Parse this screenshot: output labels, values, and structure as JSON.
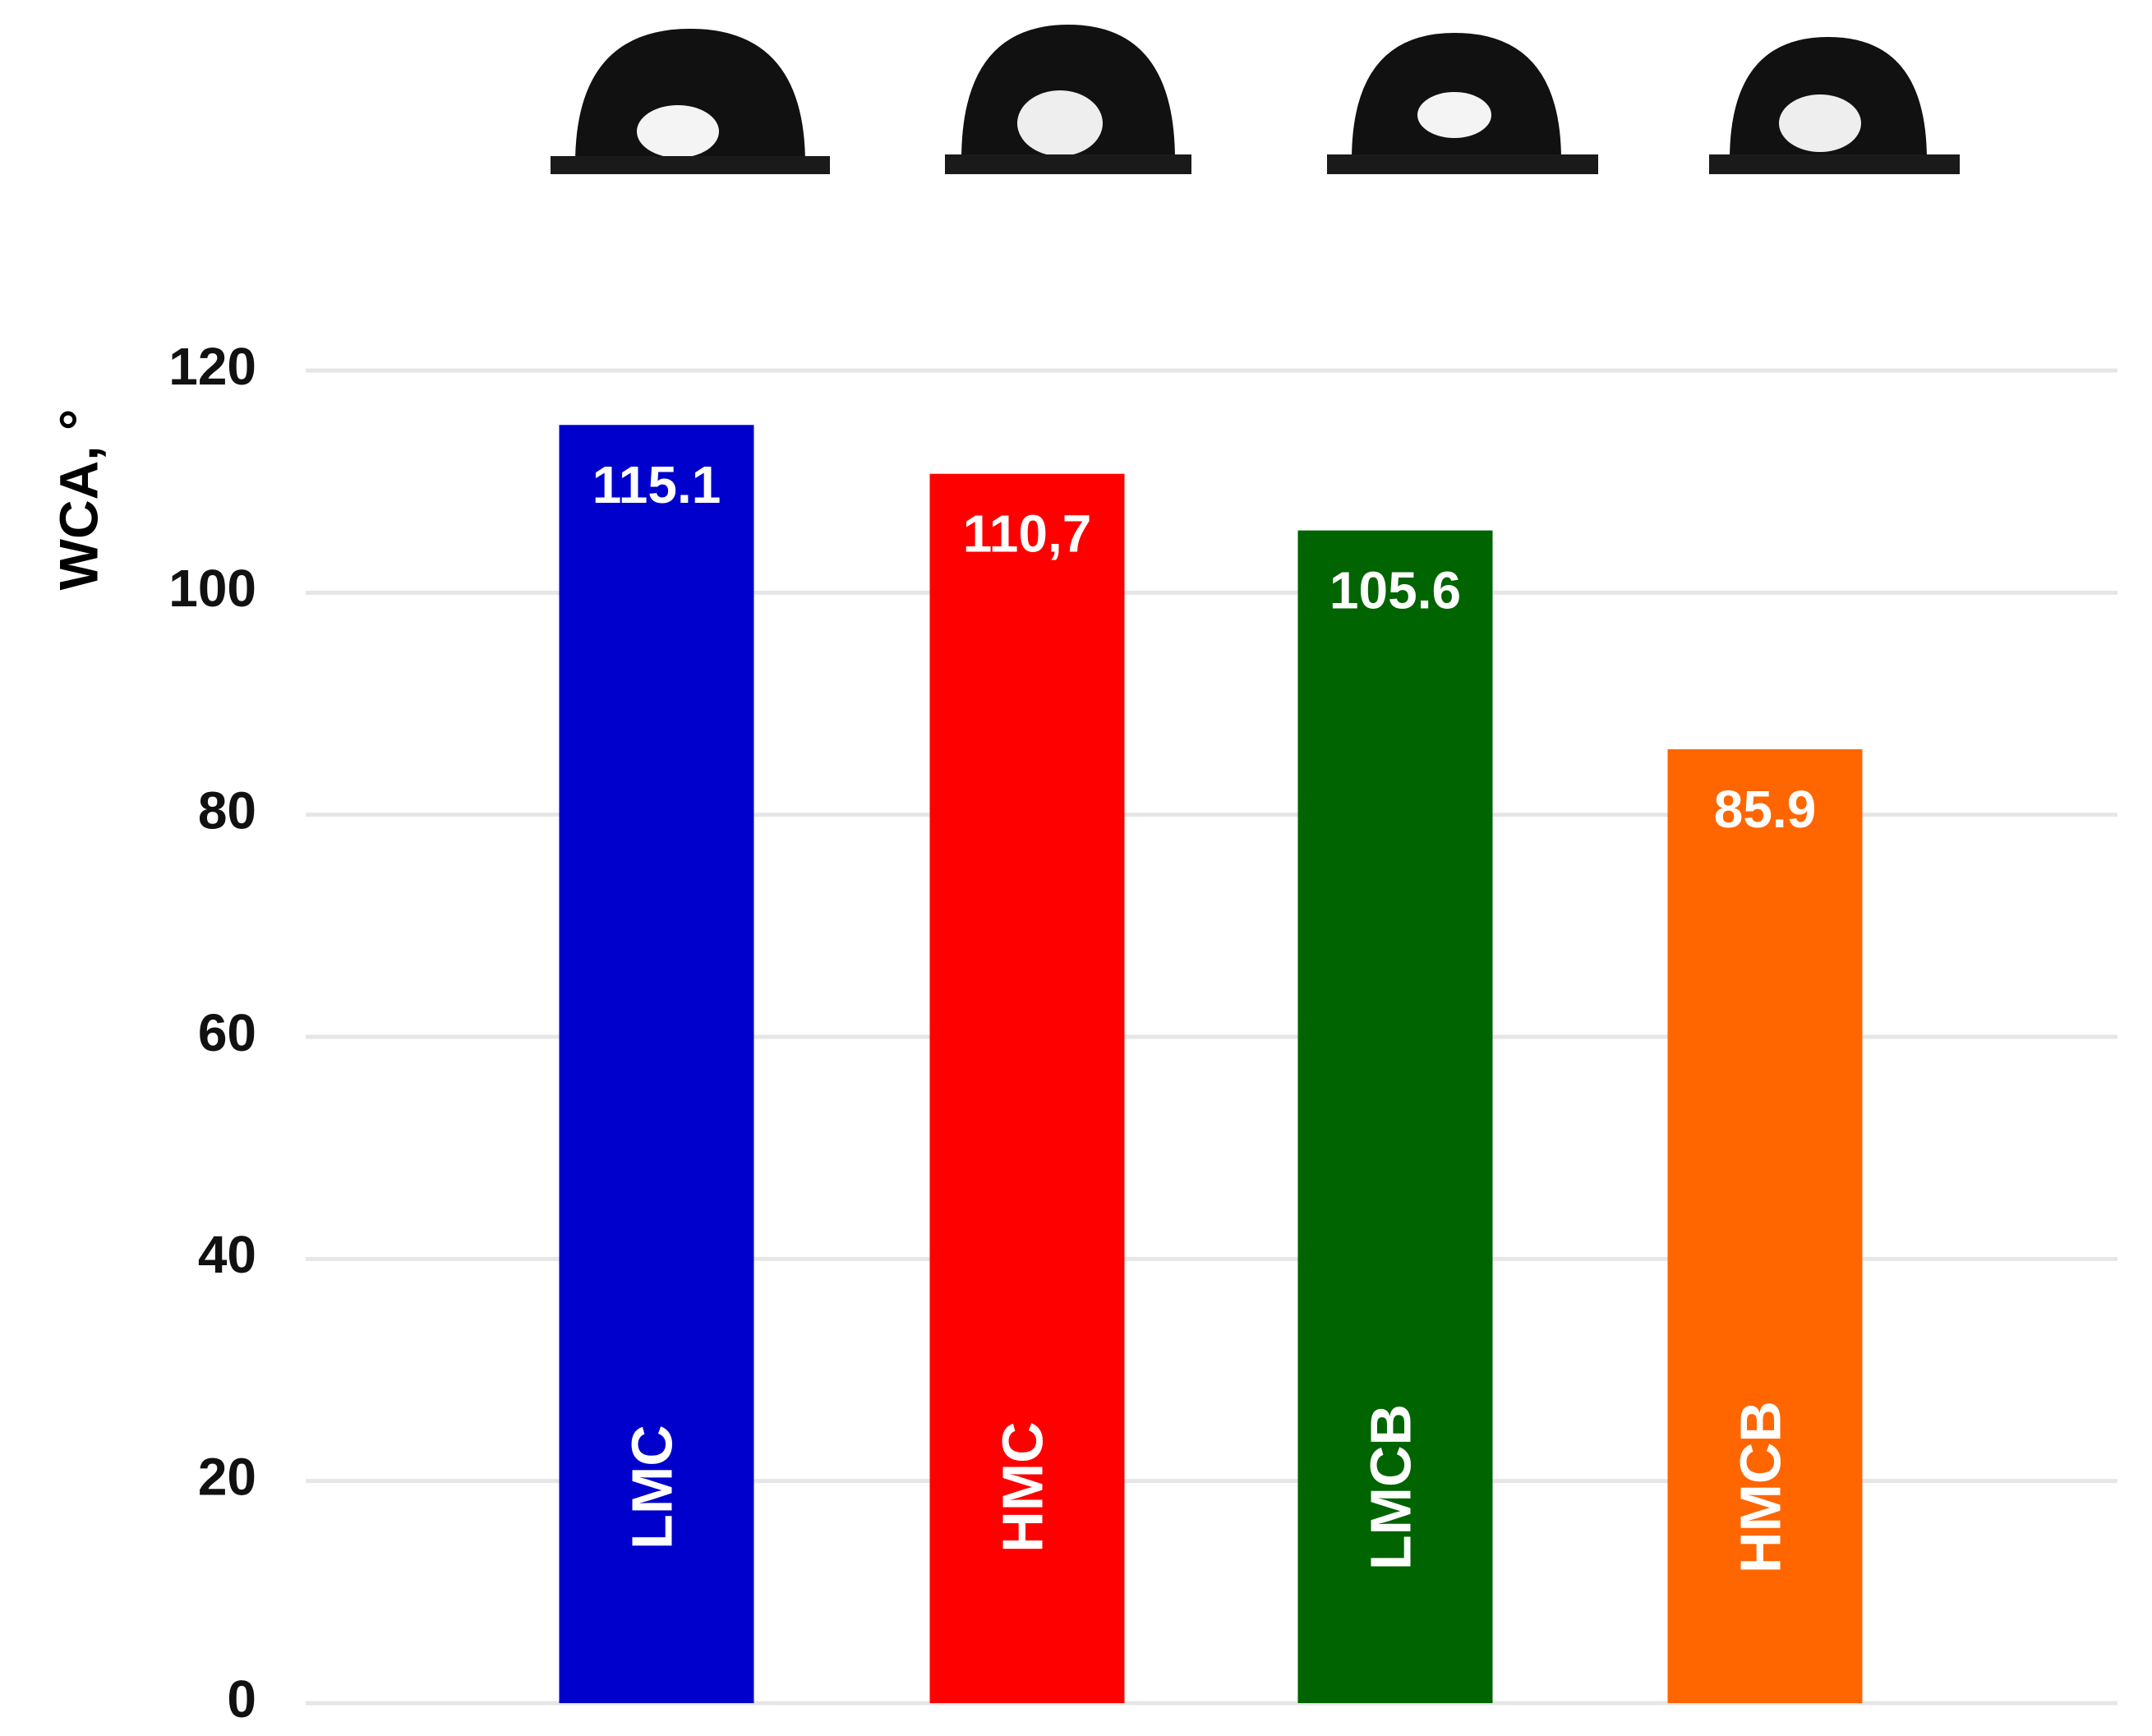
{
  "chart_data": {
    "type": "bar",
    "y_label": "WCA, °",
    "categories": [
      "LMC",
      "HMC",
      "LMCB",
      "HMCB"
    ],
    "values": [
      115.1,
      110.7,
      105.6,
      85.9
    ],
    "value_labels": [
      "115.1",
      "110,7",
      "105.6",
      "85.9"
    ],
    "colors": [
      "#0000cc",
      "#ff0000",
      "#006400",
      "#ff6600"
    ],
    "ylim": [
      0,
      120
    ],
    "yticks": [
      0,
      20,
      40,
      60,
      80,
      100,
      120
    ],
    "grid": true
  }
}
